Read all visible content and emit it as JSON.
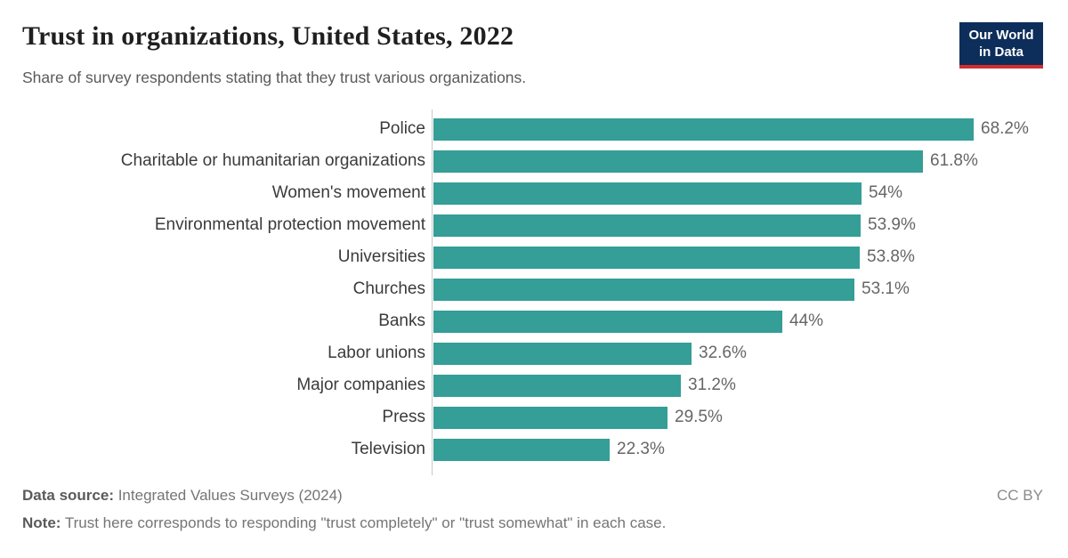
{
  "header": {
    "title": "Trust in organizations, United States, 2022",
    "subtitle": "Share of survey respondents stating that they trust various organizations.",
    "logo": {
      "line1": "Our World",
      "line2": "in Data"
    }
  },
  "chart_data": {
    "type": "bar",
    "orientation": "horizontal",
    "unit": "%",
    "title": "Trust in organizations, United States, 2022",
    "xlabel": "",
    "ylabel": "",
    "xlim": [
      0,
      68.2
    ],
    "grid": false,
    "legend": "none",
    "bar_color": "#349e97",
    "categories": [
      "Police",
      "Charitable or humanitarian organizations",
      "Women's movement",
      "Environmental protection movement",
      "Universities",
      "Churches",
      "Banks",
      "Labor unions",
      "Major companies",
      "Press",
      "Television"
    ],
    "values": [
      68.2,
      61.8,
      54,
      53.9,
      53.8,
      53.1,
      44,
      32.6,
      31.2,
      29.5,
      22.3
    ],
    "value_labels": [
      "68.2%",
      "61.8%",
      "54%",
      "53.9%",
      "53.8%",
      "53.1%",
      "44%",
      "32.6%",
      "31.2%",
      "29.5%",
      "22.3%"
    ]
  },
  "footer": {
    "source_label": "Data source:",
    "source_text": " Integrated Values Surveys (2024)",
    "note_label": "Note:",
    "note_text": " Trust here corresponds to responding \"trust completely\" or \"trust somewhat\" in each case.",
    "license": "CC BY"
  },
  "colors": {
    "bar": "#349e97",
    "axis_line": "#c9c9c9",
    "logo_background": "#0d2e5b",
    "logo_stripe": "#d22e2e"
  }
}
